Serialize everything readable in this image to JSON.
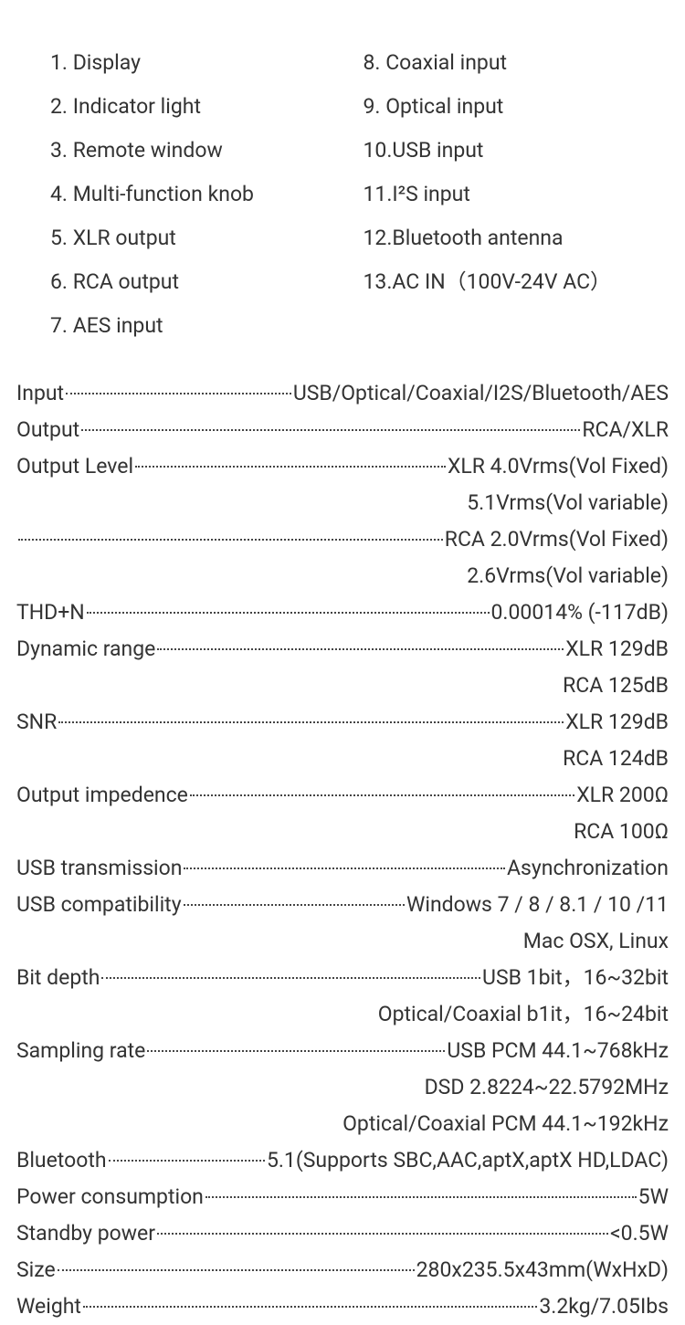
{
  "parts": {
    "left": [
      "1. Display",
      "2. Indicator light",
      "3. Remote window",
      "4. Multi-function knob",
      "5.  XLR output",
      "6. RCA output",
      "7. AES input"
    ],
    "right": [
      "8.  Coaxial input",
      "9.  Optical input",
      "10.USB input",
      "11.I²S input",
      "12.Bluetooth antenna",
      "13.AC IN（100V-24V AC）"
    ]
  },
  "specs": [
    {
      "label": "Input",
      "value": "USB/Optical/Coaxial/I2S/Bluetooth/AES",
      "dots": true
    },
    {
      "label": "Output",
      "value": "RCA/XLR",
      "dots": true
    },
    {
      "label": "Output Level",
      "value": "XLR 4.0Vrms(Vol Fixed)",
      "dots": true
    },
    {
      "label": "",
      "value": "5.1Vrms(Vol variable)",
      "dots": false
    },
    {
      "label": "",
      "value": "RCA 2.0Vrms(Vol Fixed)",
      "dots": true
    },
    {
      "label": "",
      "value": "2.6Vrms(Vol variable)",
      "dots": false
    },
    {
      "label": "THD+N",
      "value": "0.00014% (-117dB)",
      "dots": true
    },
    {
      "label": "Dynamic range",
      "value": "XLR 129dB",
      "dots": true
    },
    {
      "label": "",
      "value": "RCA 125dB",
      "dots": false
    },
    {
      "label": "SNR",
      "value": "XLR 129dB",
      "dots": true
    },
    {
      "label": "",
      "value": "RCA 124dB",
      "dots": false
    },
    {
      "label": "Output impedence",
      "value": "XLR 200Ω",
      "dots": true
    },
    {
      "label": "",
      "value": "RCA 100Ω",
      "dots": false
    },
    {
      "label": "USB transmission",
      "value": "Asynchronization",
      "dots": true
    },
    {
      "label": "USB compatibility ",
      "value": "Windows 7 / 8 / 8.1 / 10 /11",
      "dots": true
    },
    {
      "label": "",
      "value": "Mac OSX, Linux",
      "dots": false
    },
    {
      "label": "Bit depth",
      "value": "USB 1bit，16~32bit",
      "dots": true
    },
    {
      "label": "",
      "value": "Optical/Coaxial b1it，16~24bit",
      "dots": false
    },
    {
      "label": "Sampling rate",
      "value": "USB PCM 44.1~768kHz",
      "dots": true
    },
    {
      "label": "",
      "value": "DSD 2.8224~22.5792MHz",
      "dots": false
    },
    {
      "label": "",
      "value": "Optical/Coaxial PCM 44.1~192kHz",
      "dots": false
    },
    {
      "label": "Bluetooth",
      "value": "5.1(Supports SBC,AAC,aptX,aptX HD,LDAC)",
      "dots": true
    },
    {
      "label": "Power consumption",
      "value": "5W",
      "dots": true
    },
    {
      "label": "Standby power",
      "value": "<0.5W",
      "dots": true
    },
    {
      "label": "Size",
      "value": "280x235.5x43mm(WxHxD)",
      "dots": true
    },
    {
      "label": "Weight",
      "value": " 3.2kg/7.05Ibs",
      "dots": true
    }
  ],
  "colors": {
    "text": "#333333",
    "background": "#ffffff",
    "dots": "#444444"
  },
  "typography": {
    "parts_fontsize": 23,
    "parts_lineheight": 48,
    "specs_fontsize": 23,
    "specs_lineheight": 40
  }
}
